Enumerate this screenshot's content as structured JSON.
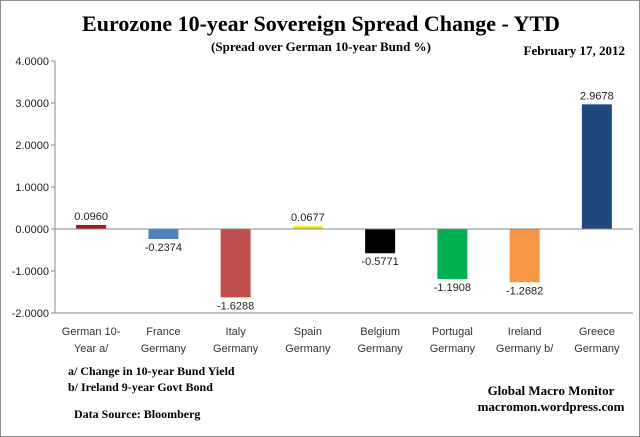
{
  "chart_data": {
    "type": "bar",
    "title": "Eurozone 10-year Sovereign Spread Change - YTD",
    "subtitle": "(Spread over German 10-year Bund %)",
    "date": "February 17, 2012",
    "categories": [
      [
        "German 10-",
        "Year a/"
      ],
      [
        "France",
        "Germany"
      ],
      [
        "Italy",
        "Germany"
      ],
      [
        "Spain",
        "Germany"
      ],
      [
        "Belgium",
        "Germany"
      ],
      [
        "Portugal",
        "Germany"
      ],
      [
        "Ireland",
        "Germany b/"
      ],
      [
        "Greece",
        "Germany"
      ]
    ],
    "values": [
      0.096,
      -0.2374,
      -1.6288,
      0.0677,
      -0.5771,
      -1.1908,
      -1.2682,
      2.9678
    ],
    "data_labels": [
      "0.0960",
      "-0.2374",
      "-1.6288",
      "0.0677",
      "-0.5771",
      "-1.1908",
      "-1.2682",
      "2.9678"
    ],
    "colors": [
      "#a31a1a",
      "#4f81bd",
      "#c0504d",
      "#f2e600",
      "#000000",
      "#00b050",
      "#f79646",
      "#1f497d"
    ],
    "ylim": [
      -2,
      4
    ],
    "yticks": [
      "-2.0000",
      "-1.0000",
      "0.0000",
      "1.0000",
      "2.0000",
      "3.0000",
      "4.0000"
    ],
    "grid": false,
    "legend": "none",
    "xlabel": "",
    "ylabel": ""
  },
  "notes": {
    "a": "a/  Change in 10-year Bund Yield",
    "b": "b/  Ireland 9-year Govt Bond",
    "source": "Data Source:  Bloomberg"
  },
  "credit": {
    "name": "Global Macro Monitor",
    "site": "macromon.wordpress.com"
  }
}
